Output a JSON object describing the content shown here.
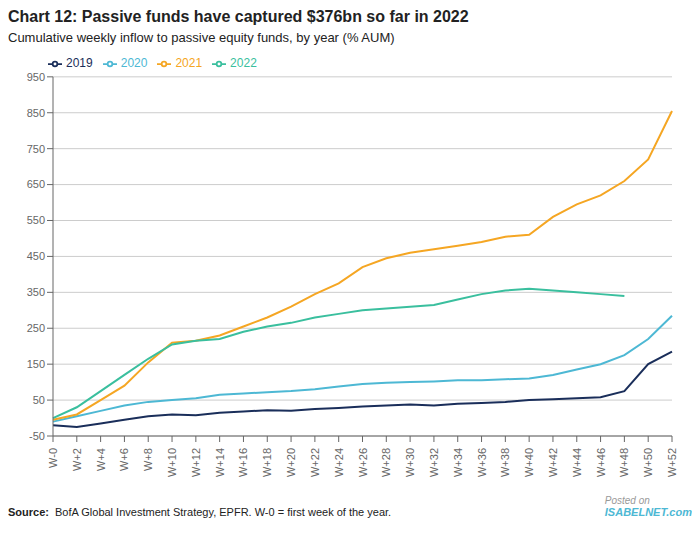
{
  "chart_data": {
    "type": "line",
    "title": "Chart 12: Passive funds have captured $376bn so far in 2022",
    "subtitle": "Cumulative weekly inflow to passive equity funds, by year (% AUM)",
    "source": [
      "Source:",
      "BofA Global Investment Strategy, EPFR. W-0 = first week of the year."
    ],
    "annotations": [
      "Posted on",
      "ISABELNET.com"
    ],
    "categories": [
      "W-0",
      "W+2",
      "W+4",
      "W+6",
      "W+8",
      "W+10",
      "W+12",
      "W+14",
      "W+16",
      "W+18",
      "W+20",
      "W+22",
      "W+24",
      "W+26",
      "W+28",
      "W+30",
      "W+32",
      "W+34",
      "W+36",
      "W+38",
      "W+40",
      "W+42",
      "W+44",
      "W+46",
      "W+48",
      "W+50",
      "W+52"
    ],
    "series": [
      {
        "name": "2019",
        "color": "#1a2e5a",
        "values": [
          -20,
          -25,
          -15,
          -5,
          5,
          10,
          8,
          15,
          18,
          22,
          20,
          25,
          28,
          32,
          35,
          38,
          35,
          40,
          42,
          45,
          50,
          52,
          55,
          58,
          75,
          150,
          185
        ]
      },
      {
        "name": "2020",
        "color": "#4db8d4",
        "values": [
          -10,
          5,
          20,
          35,
          45,
          50,
          55,
          65,
          68,
          72,
          75,
          80,
          88,
          95,
          98,
          100,
          102,
          105,
          105,
          108,
          110,
          120,
          135,
          150,
          175,
          220,
          285
        ]
      },
      {
        "name": "2021",
        "color": "#f5a623",
        "values": [
          -5,
          10,
          50,
          90,
          155,
          210,
          215,
          230,
          255,
          280,
          310,
          345,
          375,
          420,
          445,
          460,
          470,
          480,
          490,
          505,
          510,
          560,
          595,
          620,
          660,
          720,
          855
        ]
      },
      {
        "name": "2022",
        "color": "#3abf9e",
        "values": [
          0,
          30,
          75,
          120,
          165,
          205,
          215,
          220,
          240,
          255,
          265,
          280,
          290,
          300,
          305,
          310,
          315,
          330,
          345,
          355,
          360,
          355,
          350,
          345,
          340,
          null,
          null
        ]
      }
    ],
    "ylim": [
      -50,
      950
    ],
    "yticks": [
      -50,
      50,
      150,
      250,
      350,
      450,
      550,
      650,
      750,
      850,
      950
    ],
    "grid": true,
    "legend": "upper left"
  }
}
